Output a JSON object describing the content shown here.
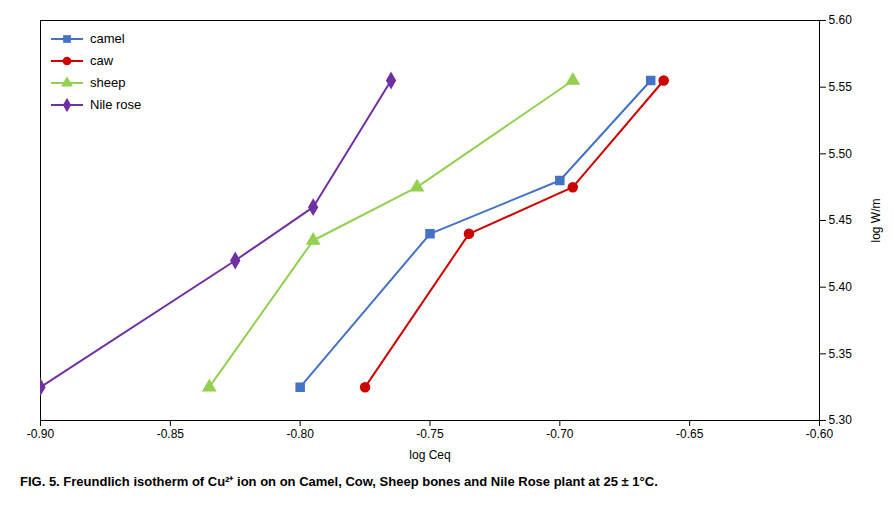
{
  "chart_data": {
    "type": "line",
    "caption": "FIG. 5. Freundlich isotherm of Cu²⁺ ion on on Camel, Cow, Sheep bones and Nile Rose plant at 25 ± 1°C.",
    "xlabel": "log Ceq",
    "ylabel": "log W/m",
    "series": [
      {
        "name": "camel",
        "color": "#4472C4",
        "marker": "square",
        "x": [
          -0.8,
          -0.75,
          -0.7,
          -0.665
        ],
        "values": [
          5.325,
          5.44,
          5.48,
          5.555
        ]
      },
      {
        "name": "caw",
        "color": "#CC0000",
        "marker": "circle",
        "x": [
          -0.775,
          -0.735,
          -0.695,
          -0.66
        ],
        "values": [
          5.325,
          5.44,
          5.475,
          5.555
        ]
      },
      {
        "name": "sheep",
        "color": "#92D050",
        "marker": "triangle",
        "x": [
          -0.835,
          -0.795,
          -0.755,
          -0.695
        ],
        "values": [
          5.325,
          5.435,
          5.475,
          5.555
        ]
      },
      {
        "name": "Nile rose",
        "color": "#7030A0",
        "marker": "diamond",
        "x": [
          -0.9,
          -0.825,
          -0.795,
          -0.765
        ],
        "values": [
          5.325,
          5.42,
          5.46,
          5.555
        ]
      }
    ],
    "xlim": [
      -0.9,
      -0.6
    ],
    "ylim": [
      5.3,
      5.6
    ],
    "xticks": [
      {
        "value": -0.9,
        "label": "-0.90"
      },
      -0.85,
      {
        "value": -0.8,
        "label": "-0.80"
      },
      -0.75,
      {
        "value": -0.7,
        "label": "-0.70"
      },
      -0.65,
      {
        "value": -0.6,
        "label": "-0.60"
      }
    ],
    "yticks": [
      {
        "value": 5.3,
        "label": "5.30"
      },
      5.35,
      {
        "value": 5.4,
        "label": "5.40"
      },
      5.45,
      {
        "value": 5.5,
        "label": "5.50"
      },
      5.55,
      {
        "value": 5.6,
        "label": "5.60"
      }
    ],
    "grid": false,
    "legend": "upper left"
  }
}
